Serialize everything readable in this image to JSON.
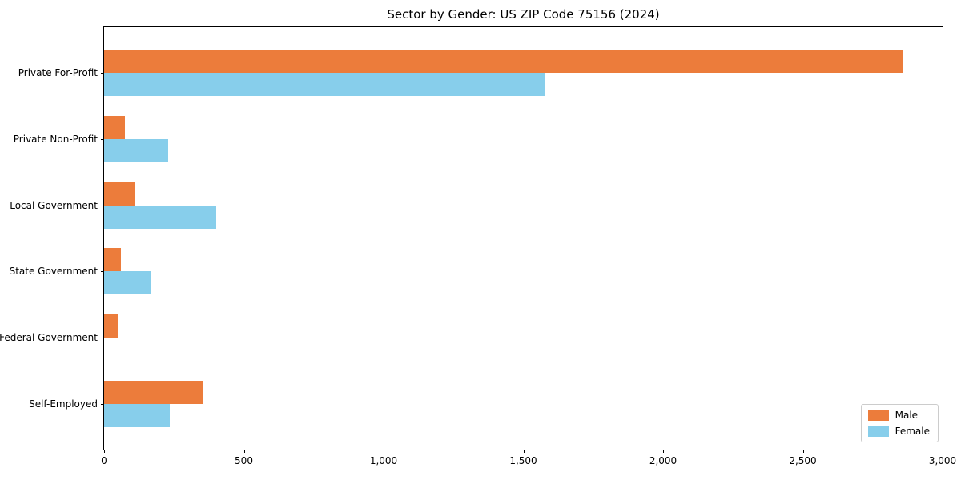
{
  "chart_data": {
    "type": "bar",
    "orientation": "horizontal",
    "title": "Sector by Gender: US ZIP Code 75156 (2024)",
    "categories": [
      "Private For-Profit",
      "Private Non-Profit",
      "Local Government",
      "State Government",
      "Federal Government",
      "Self-Employed"
    ],
    "series": [
      {
        "name": "Male",
        "color": "#ec7c3b",
        "values": [
          2860,
          75,
          110,
          60,
          50,
          355
        ]
      },
      {
        "name": "Female",
        "color": "#87ceeb",
        "values": [
          1575,
          230,
          400,
          170,
          0,
          235
        ]
      }
    ],
    "xlabel": "",
    "ylabel": "",
    "xlim": [
      0,
      3000
    ],
    "xticks": [
      {
        "value": 0,
        "label": "0"
      },
      {
        "value": 500,
        "label": "500"
      },
      {
        "value": 1000,
        "label": "1,000"
      },
      {
        "value": 1500,
        "label": "1,500"
      },
      {
        "value": 2000,
        "label": "2,000"
      },
      {
        "value": 2500,
        "label": "2,500"
      },
      {
        "value": 3000,
        "label": "3,000"
      }
    ],
    "grid": false,
    "legend_position": "lower right",
    "bar_width_units": 0.35,
    "axis_color": "#000000",
    "background_color": "#ffffff"
  }
}
